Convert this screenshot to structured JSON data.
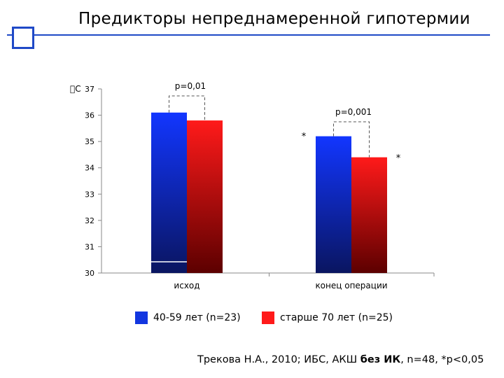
{
  "title": "Предикторы непреднамеренной гипотермии",
  "colors": {
    "accent": "#1f49c7",
    "series1": "#1236e0",
    "series2": "#ff1a1a"
  },
  "chart_data": {
    "type": "bar",
    "ylabel": "С",
    "ylim": [
      30,
      37
    ],
    "yticks": [
      "30",
      "31",
      "32",
      "33",
      "34",
      "35",
      "36",
      "37"
    ],
    "categories": [
      "исход",
      "конец операции"
    ],
    "series": [
      {
        "name": "40-59 лет (n=23)",
        "values": [
          36.1,
          35.2
        ]
      },
      {
        "name": "старше 70 лет (n=25)",
        "values": [
          35.8,
          34.4
        ]
      }
    ],
    "annotations": [
      {
        "group": 0,
        "text": "p=0,01"
      },
      {
        "group": 1,
        "text": "p=0,001"
      }
    ],
    "markers": [
      "*",
      "*"
    ]
  },
  "footer": {
    "prefix": "Трекова Н.А., 2010; ИБС, АКШ ",
    "bold": "без ИК",
    "suffix": ", n=48, *p<0,05"
  }
}
